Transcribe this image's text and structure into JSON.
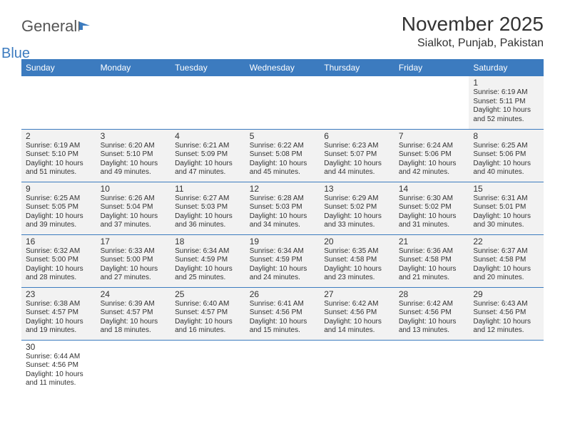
{
  "logo": {
    "text1": "General",
    "text2": "Blue"
  },
  "title": "November 2025",
  "location": "Sialkot, Punjab, Pakistan",
  "colors": {
    "header_bg": "#3c7bbf",
    "header_text": "#ffffff",
    "cell_bg": "#f2f2f2",
    "border": "#3c7bbf",
    "text": "#333333",
    "page_bg": "#ffffff"
  },
  "day_headers": [
    "Sunday",
    "Monday",
    "Tuesday",
    "Wednesday",
    "Thursday",
    "Friday",
    "Saturday"
  ],
  "weeks": [
    [
      null,
      null,
      null,
      null,
      null,
      null,
      {
        "n": "1",
        "sr": "Sunrise: 6:19 AM",
        "ss": "Sunset: 5:11 PM",
        "d1": "Daylight: 10 hours",
        "d2": "and 52 minutes."
      }
    ],
    [
      {
        "n": "2",
        "sr": "Sunrise: 6:19 AM",
        "ss": "Sunset: 5:10 PM",
        "d1": "Daylight: 10 hours",
        "d2": "and 51 minutes."
      },
      {
        "n": "3",
        "sr": "Sunrise: 6:20 AM",
        "ss": "Sunset: 5:10 PM",
        "d1": "Daylight: 10 hours",
        "d2": "and 49 minutes."
      },
      {
        "n": "4",
        "sr": "Sunrise: 6:21 AM",
        "ss": "Sunset: 5:09 PM",
        "d1": "Daylight: 10 hours",
        "d2": "and 47 minutes."
      },
      {
        "n": "5",
        "sr": "Sunrise: 6:22 AM",
        "ss": "Sunset: 5:08 PM",
        "d1": "Daylight: 10 hours",
        "d2": "and 45 minutes."
      },
      {
        "n": "6",
        "sr": "Sunrise: 6:23 AM",
        "ss": "Sunset: 5:07 PM",
        "d1": "Daylight: 10 hours",
        "d2": "and 44 minutes."
      },
      {
        "n": "7",
        "sr": "Sunrise: 6:24 AM",
        "ss": "Sunset: 5:06 PM",
        "d1": "Daylight: 10 hours",
        "d2": "and 42 minutes."
      },
      {
        "n": "8",
        "sr": "Sunrise: 6:25 AM",
        "ss": "Sunset: 5:06 PM",
        "d1": "Daylight: 10 hours",
        "d2": "and 40 minutes."
      }
    ],
    [
      {
        "n": "9",
        "sr": "Sunrise: 6:25 AM",
        "ss": "Sunset: 5:05 PM",
        "d1": "Daylight: 10 hours",
        "d2": "and 39 minutes."
      },
      {
        "n": "10",
        "sr": "Sunrise: 6:26 AM",
        "ss": "Sunset: 5:04 PM",
        "d1": "Daylight: 10 hours",
        "d2": "and 37 minutes."
      },
      {
        "n": "11",
        "sr": "Sunrise: 6:27 AM",
        "ss": "Sunset: 5:03 PM",
        "d1": "Daylight: 10 hours",
        "d2": "and 36 minutes."
      },
      {
        "n": "12",
        "sr": "Sunrise: 6:28 AM",
        "ss": "Sunset: 5:03 PM",
        "d1": "Daylight: 10 hours",
        "d2": "and 34 minutes."
      },
      {
        "n": "13",
        "sr": "Sunrise: 6:29 AM",
        "ss": "Sunset: 5:02 PM",
        "d1": "Daylight: 10 hours",
        "d2": "and 33 minutes."
      },
      {
        "n": "14",
        "sr": "Sunrise: 6:30 AM",
        "ss": "Sunset: 5:02 PM",
        "d1": "Daylight: 10 hours",
        "d2": "and 31 minutes."
      },
      {
        "n": "15",
        "sr": "Sunrise: 6:31 AM",
        "ss": "Sunset: 5:01 PM",
        "d1": "Daylight: 10 hours",
        "d2": "and 30 minutes."
      }
    ],
    [
      {
        "n": "16",
        "sr": "Sunrise: 6:32 AM",
        "ss": "Sunset: 5:00 PM",
        "d1": "Daylight: 10 hours",
        "d2": "and 28 minutes."
      },
      {
        "n": "17",
        "sr": "Sunrise: 6:33 AM",
        "ss": "Sunset: 5:00 PM",
        "d1": "Daylight: 10 hours",
        "d2": "and 27 minutes."
      },
      {
        "n": "18",
        "sr": "Sunrise: 6:34 AM",
        "ss": "Sunset: 4:59 PM",
        "d1": "Daylight: 10 hours",
        "d2": "and 25 minutes."
      },
      {
        "n": "19",
        "sr": "Sunrise: 6:34 AM",
        "ss": "Sunset: 4:59 PM",
        "d1": "Daylight: 10 hours",
        "d2": "and 24 minutes."
      },
      {
        "n": "20",
        "sr": "Sunrise: 6:35 AM",
        "ss": "Sunset: 4:58 PM",
        "d1": "Daylight: 10 hours",
        "d2": "and 23 minutes."
      },
      {
        "n": "21",
        "sr": "Sunrise: 6:36 AM",
        "ss": "Sunset: 4:58 PM",
        "d1": "Daylight: 10 hours",
        "d2": "and 21 minutes."
      },
      {
        "n": "22",
        "sr": "Sunrise: 6:37 AM",
        "ss": "Sunset: 4:58 PM",
        "d1": "Daylight: 10 hours",
        "d2": "and 20 minutes."
      }
    ],
    [
      {
        "n": "23",
        "sr": "Sunrise: 6:38 AM",
        "ss": "Sunset: 4:57 PM",
        "d1": "Daylight: 10 hours",
        "d2": "and 19 minutes."
      },
      {
        "n": "24",
        "sr": "Sunrise: 6:39 AM",
        "ss": "Sunset: 4:57 PM",
        "d1": "Daylight: 10 hours",
        "d2": "and 18 minutes."
      },
      {
        "n": "25",
        "sr": "Sunrise: 6:40 AM",
        "ss": "Sunset: 4:57 PM",
        "d1": "Daylight: 10 hours",
        "d2": "and 16 minutes."
      },
      {
        "n": "26",
        "sr": "Sunrise: 6:41 AM",
        "ss": "Sunset: 4:56 PM",
        "d1": "Daylight: 10 hours",
        "d2": "and 15 minutes."
      },
      {
        "n": "27",
        "sr": "Sunrise: 6:42 AM",
        "ss": "Sunset: 4:56 PM",
        "d1": "Daylight: 10 hours",
        "d2": "and 14 minutes."
      },
      {
        "n": "28",
        "sr": "Sunrise: 6:42 AM",
        "ss": "Sunset: 4:56 PM",
        "d1": "Daylight: 10 hours",
        "d2": "and 13 minutes."
      },
      {
        "n": "29",
        "sr": "Sunrise: 6:43 AM",
        "ss": "Sunset: 4:56 PM",
        "d1": "Daylight: 10 hours",
        "d2": "and 12 minutes."
      }
    ],
    [
      {
        "n": "30",
        "sr": "Sunrise: 6:44 AM",
        "ss": "Sunset: 4:56 PM",
        "d1": "Daylight: 10 hours",
        "d2": "and 11 minutes."
      },
      null,
      null,
      null,
      null,
      null,
      null
    ]
  ]
}
